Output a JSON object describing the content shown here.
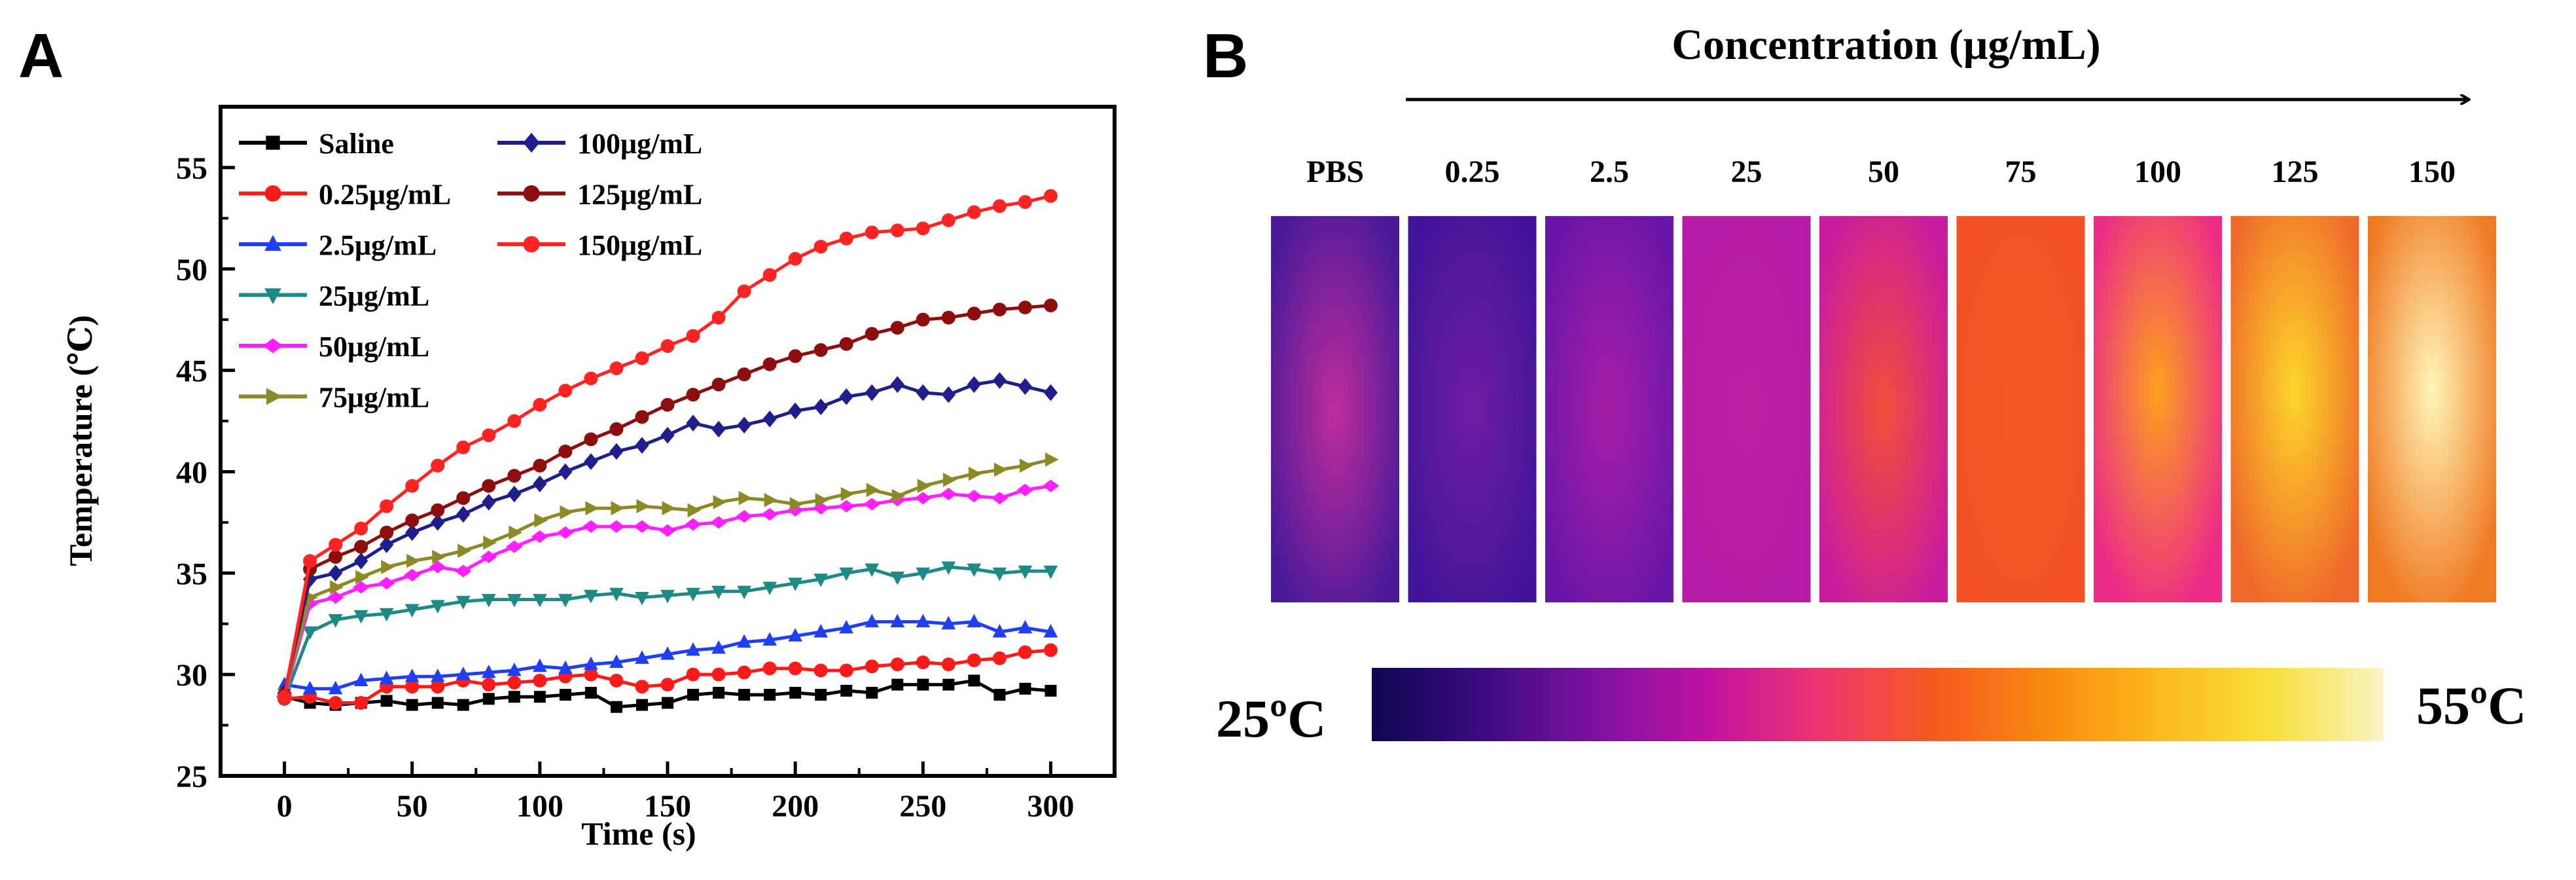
{
  "panel_a_label": "A",
  "panel_b_label": "B",
  "chart_data": {
    "type": "line",
    "xlabel": "Time (s)",
    "ylabel": "Temperature (℃)",
    "xlim": [
      -25,
      325
    ],
    "ylim": [
      25,
      58
    ],
    "xticks": [
      0,
      50,
      100,
      150,
      200,
      250,
      300
    ],
    "yticks": [
      25,
      30,
      35,
      40,
      45,
      50,
      55
    ],
    "x": [
      0,
      10,
      20,
      30,
      40,
      50,
      60,
      70,
      80,
      90,
      100,
      110,
      120,
      130,
      140,
      150,
      160,
      170,
      180,
      190,
      200,
      210,
      220,
      230,
      240,
      250,
      260,
      270,
      280,
      290,
      300
    ],
    "legend_position": "top-left",
    "series": [
      {
        "name": "Saline",
        "color": "#000000",
        "marker": "square",
        "values": [
          28.9,
          28.6,
          28.5,
          28.6,
          28.7,
          28.5,
          28.6,
          28.5,
          28.8,
          28.9,
          28.9,
          29.0,
          29.1,
          28.4,
          28.5,
          28.6,
          29.0,
          29.1,
          29.0,
          29.0,
          29.1,
          29.0,
          29.2,
          29.1,
          29.5,
          29.5,
          29.5,
          29.7,
          29.0,
          29.3,
          29.2
        ]
      },
      {
        "name": "0.25μg/mL",
        "color": "#ff1a1a",
        "marker": "circle",
        "values": [
          28.8,
          28.9,
          28.6,
          28.6,
          29.4,
          29.4,
          29.4,
          29.7,
          29.5,
          29.6,
          29.7,
          29.9,
          30.0,
          29.7,
          29.4,
          29.5,
          30.0,
          30.0,
          30.1,
          30.3,
          30.3,
          30.2,
          30.2,
          30.4,
          30.5,
          30.6,
          30.5,
          30.7,
          30.8,
          31.1,
          31.2
        ]
      },
      {
        "name": "2.5μg/mL",
        "color": "#1f3ff5",
        "marker": "triangle-up",
        "values": [
          29.5,
          29.3,
          29.3,
          29.7,
          29.8,
          29.9,
          29.9,
          30.0,
          30.1,
          30.2,
          30.4,
          30.3,
          30.5,
          30.6,
          30.8,
          31.0,
          31.2,
          31.3,
          31.6,
          31.7,
          31.9,
          32.1,
          32.3,
          32.6,
          32.6,
          32.6,
          32.5,
          32.6,
          32.1,
          32.3,
          32.1
        ]
      },
      {
        "name": "25μg/mL",
        "color": "#1e8a85",
        "marker": "triangle-down",
        "values": [
          28.8,
          32.1,
          32.7,
          32.9,
          33.0,
          33.2,
          33.4,
          33.6,
          33.7,
          33.7,
          33.7,
          33.7,
          33.9,
          34.0,
          33.8,
          33.9,
          34.0,
          34.1,
          34.1,
          34.3,
          34.5,
          34.7,
          35.0,
          35.2,
          34.8,
          35.0,
          35.3,
          35.2,
          35.0,
          35.1,
          35.1
        ]
      },
      {
        "name": "50μg/mL",
        "color": "#ff20ff",
        "marker": "diamond-left",
        "values": [
          28.9,
          33.5,
          33.8,
          34.3,
          34.5,
          34.9,
          35.3,
          35.1,
          35.8,
          36.3,
          36.8,
          37.0,
          37.3,
          37.3,
          37.3,
          37.1,
          37.4,
          37.5,
          37.8,
          37.9,
          38.1,
          38.2,
          38.3,
          38.4,
          38.6,
          38.7,
          38.9,
          38.8,
          38.7,
          39.1,
          39.3
        ]
      },
      {
        "name": "75μg/mL",
        "color": "#8c8a24",
        "marker": "triangle-right",
        "values": [
          29.0,
          33.8,
          34.3,
          34.8,
          35.3,
          35.6,
          35.8,
          36.1,
          36.5,
          37.0,
          37.6,
          38.0,
          38.2,
          38.2,
          38.3,
          38.2,
          38.1,
          38.5,
          38.7,
          38.6,
          38.4,
          38.6,
          38.9,
          39.1,
          38.8,
          39.3,
          39.6,
          39.9,
          40.1,
          40.3,
          40.6
        ]
      },
      {
        "name": "100μg/mL",
        "color": "#1e1e8c",
        "marker": "diamond",
        "values": [
          29.1,
          34.7,
          35.0,
          35.6,
          36.4,
          37.0,
          37.5,
          37.9,
          38.5,
          38.9,
          39.4,
          40.0,
          40.5,
          41.0,
          41.3,
          41.8,
          42.4,
          42.1,
          42.3,
          42.6,
          43.0,
          43.2,
          43.7,
          43.9,
          44.3,
          43.9,
          43.8,
          44.3,
          44.5,
          44.2,
          43.9
        ]
      },
      {
        "name": "125μg/mL",
        "color": "#8e0e0e",
        "marker": "circle",
        "values": [
          29.0,
          35.2,
          35.8,
          36.3,
          37.0,
          37.6,
          38.1,
          38.7,
          39.3,
          39.8,
          40.3,
          41.0,
          41.6,
          42.1,
          42.7,
          43.3,
          43.8,
          44.3,
          44.8,
          45.3,
          45.7,
          46.0,
          46.3,
          46.8,
          47.1,
          47.5,
          47.6,
          47.8,
          48.0,
          48.1,
          48.2
        ]
      },
      {
        "name": "150μg/mL",
        "color": "#ff2424",
        "marker": "circle",
        "values": [
          28.9,
          35.6,
          36.4,
          37.2,
          38.3,
          39.3,
          40.3,
          41.2,
          41.8,
          42.5,
          43.3,
          44.0,
          44.6,
          45.1,
          45.6,
          46.2,
          46.7,
          47.6,
          48.9,
          49.7,
          50.5,
          51.1,
          51.5,
          51.8,
          51.9,
          52.0,
          52.4,
          52.8,
          53.1,
          53.3,
          53.6
        ]
      }
    ]
  },
  "thermal": {
    "title": "Concentration (μg/mL)",
    "samples": [
      {
        "label": "PBS",
        "base": "#4a1a98",
        "core": "#d4309c",
        "core_opacity": 0.85
      },
      {
        "label": "0.25",
        "base": "#42149a",
        "core": "#8222a8",
        "core_opacity": 0.7
      },
      {
        "label": "2.5",
        "base": "#6a16a8",
        "core": "#b520a6",
        "core_opacity": 0.8
      },
      {
        "label": "25",
        "base": "#b61ca4",
        "core": "#c424a2",
        "core_opacity": 0.5
      },
      {
        "label": "50",
        "base": "#c81c9e",
        "core": "#f55233",
        "core_opacity": 0.95
      },
      {
        "label": "75",
        "base": "#f25226",
        "core": "#f65a22",
        "core_opacity": 0.5
      },
      {
        "label": "100",
        "base": "#ec2c86",
        "core": "#fca11e",
        "core_opacity": 1.0
      },
      {
        "label": "125",
        "base": "#ef6a2a",
        "core": "#fdd62a",
        "core_opacity": 1.0
      },
      {
        "label": "150",
        "base": "#f07a22",
        "core": "#fff6b8",
        "core_opacity": 1.0
      }
    ],
    "colorbar_min": "25ºC",
    "colorbar_max": "55ºC",
    "colorbar_stops": [
      "#0e0650",
      "#3c0b80",
      "#7e12a0",
      "#c012a0",
      "#ed3670",
      "#f65a1e",
      "#f98a10",
      "#fbb91c",
      "#f8e03c",
      "#f8f5c4"
    ]
  }
}
